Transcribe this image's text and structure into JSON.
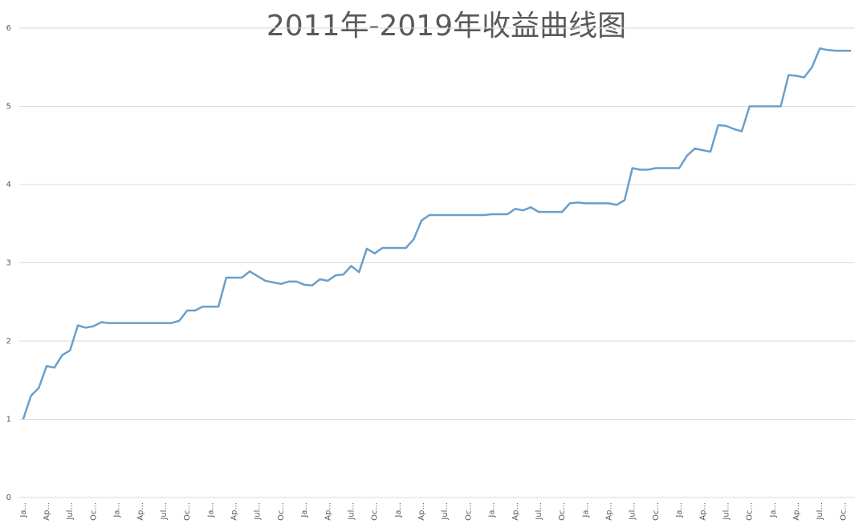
{
  "chart_data": {
    "type": "line",
    "title": "2011年-2019年收益曲线图",
    "categories": [
      "Ja...",
      null,
      null,
      "Ap...",
      null,
      null,
      "Jul...",
      null,
      null,
      "Oc...",
      null,
      null,
      "Ja...",
      null,
      null,
      "Ap...",
      null,
      null,
      "Jul...",
      null,
      null,
      "Oc...",
      null,
      null,
      "Ja...",
      null,
      null,
      "Ap...",
      null,
      null,
      "Jul...",
      null,
      null,
      "Oc...",
      null,
      null,
      "Ja...",
      null,
      null,
      "Ap...",
      null,
      null,
      "Jul...",
      null,
      null,
      "Oc...",
      null,
      null,
      "Ja...",
      null,
      null,
      "Ap...",
      null,
      null,
      "Jul...",
      null,
      null,
      "Oc...",
      null,
      null,
      "Ja...",
      null,
      null,
      "Ap...",
      null,
      null,
      "Jul...",
      null,
      null,
      "Oc...",
      null,
      null,
      "Ja...",
      null,
      null,
      "Ap...",
      null,
      null,
      "Jul...",
      null,
      null,
      "Oc...",
      null,
      null,
      "Ja...",
      null,
      null,
      "Ap...",
      null,
      null,
      "Jul...",
      null,
      null,
      "Oc...",
      null,
      null,
      "Ja...",
      null,
      null,
      "Ap...",
      null,
      null,
      "Jul...",
      null,
      null,
      "Oc...",
      null
    ],
    "values": [
      1.0,
      1.3,
      1.4,
      1.68,
      1.66,
      1.82,
      1.88,
      2.2,
      2.17,
      2.19,
      2.24,
      2.23,
      2.23,
      2.23,
      2.23,
      2.23,
      2.23,
      2.23,
      2.23,
      2.23,
      2.26,
      2.39,
      2.39,
      2.44,
      2.44,
      2.44,
      2.81,
      2.81,
      2.81,
      2.89,
      2.83,
      2.77,
      2.75,
      2.73,
      2.76,
      2.76,
      2.72,
      2.71,
      2.79,
      2.77,
      2.84,
      2.85,
      2.96,
      2.88,
      3.18,
      3.12,
      3.19,
      3.19,
      3.19,
      3.19,
      3.3,
      3.54,
      3.61,
      3.61,
      3.61,
      3.61,
      3.61,
      3.61,
      3.61,
      3.61,
      3.62,
      3.62,
      3.62,
      3.69,
      3.67,
      3.71,
      3.65,
      3.65,
      3.65,
      3.65,
      3.76,
      3.77,
      3.76,
      3.76,
      3.76,
      3.76,
      3.74,
      3.8,
      4.21,
      4.19,
      4.19,
      4.21,
      4.21,
      4.21,
      4.21,
      4.37,
      4.46,
      4.44,
      4.42,
      4.76,
      4.75,
      4.71,
      4.68,
      5.0,
      5.0,
      5.0,
      5.0,
      5.0,
      5.4,
      5.39,
      5.37,
      5.5,
      5.74,
      5.72,
      5.71,
      5.71,
      5.71
    ],
    "color": "#6a9fca",
    "ylim": [
      0,
      6
    ],
    "yticks": [
      0,
      1,
      2,
      3,
      4,
      5,
      6
    ],
    "grid": true
  }
}
